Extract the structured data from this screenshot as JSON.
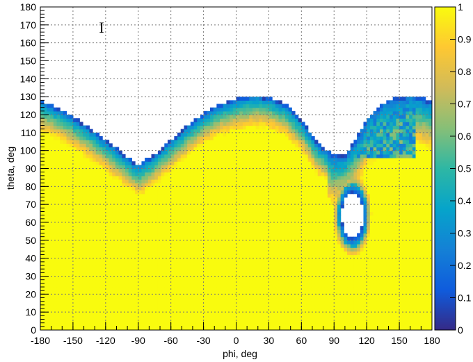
{
  "chart_data": {
    "type": "heatmap",
    "title": "",
    "xlabel": "phi, deg",
    "ylabel": "theta, deg",
    "xlim": [
      -180,
      180
    ],
    "ylim": [
      0,
      180
    ],
    "zlim": [
      0,
      1
    ],
    "x_ticks": [
      "-180",
      "-150",
      "-120",
      "-90",
      "-60",
      "-30",
      "0",
      "30",
      "60",
      "90",
      "120",
      "150",
      "180"
    ],
    "y_ticks": [
      "0",
      "10",
      "20",
      "30",
      "40",
      "50",
      "60",
      "70",
      "80",
      "90",
      "100",
      "110",
      "120",
      "130",
      "140",
      "150",
      "160",
      "170",
      "180"
    ],
    "colorbar_ticks": [
      "0",
      "0.1",
      "0.2",
      "0.3",
      "0.4",
      "0.5",
      "0.6",
      "0.7",
      "0.8",
      "0.9",
      "1"
    ],
    "colormap": [
      "#352a87",
      "#0f5cdd",
      "#1481d6",
      "#06a4ca",
      "#2eb7a4",
      "#87bf77",
      "#d1bb59",
      "#fec832",
      "#f9fb0e"
    ],
    "grid": true,
    "boundary_upper_theta": {
      "phi": [
        -180,
        -165,
        -150,
        -135,
        -120,
        -105,
        -90,
        -75,
        -60,
        -45,
        -30,
        -15,
        0,
        15,
        30,
        45,
        60,
        75,
        90,
        100,
        110,
        120,
        130,
        140,
        150,
        160,
        170,
        180
      ],
      "theta": [
        128,
        124,
        119,
        113,
        106,
        99,
        92,
        98,
        106,
        114,
        121,
        126,
        129,
        131,
        130,
        126,
        117,
        104,
        97,
        98,
        106,
        118,
        124,
        128,
        130,
        131,
        130,
        127
      ]
    },
    "hole": {
      "center_phi": 107,
      "center_theta": 64,
      "half_width_phi": 10,
      "half_height_theta": 13
    },
    "cursor_glyph": "I"
  }
}
